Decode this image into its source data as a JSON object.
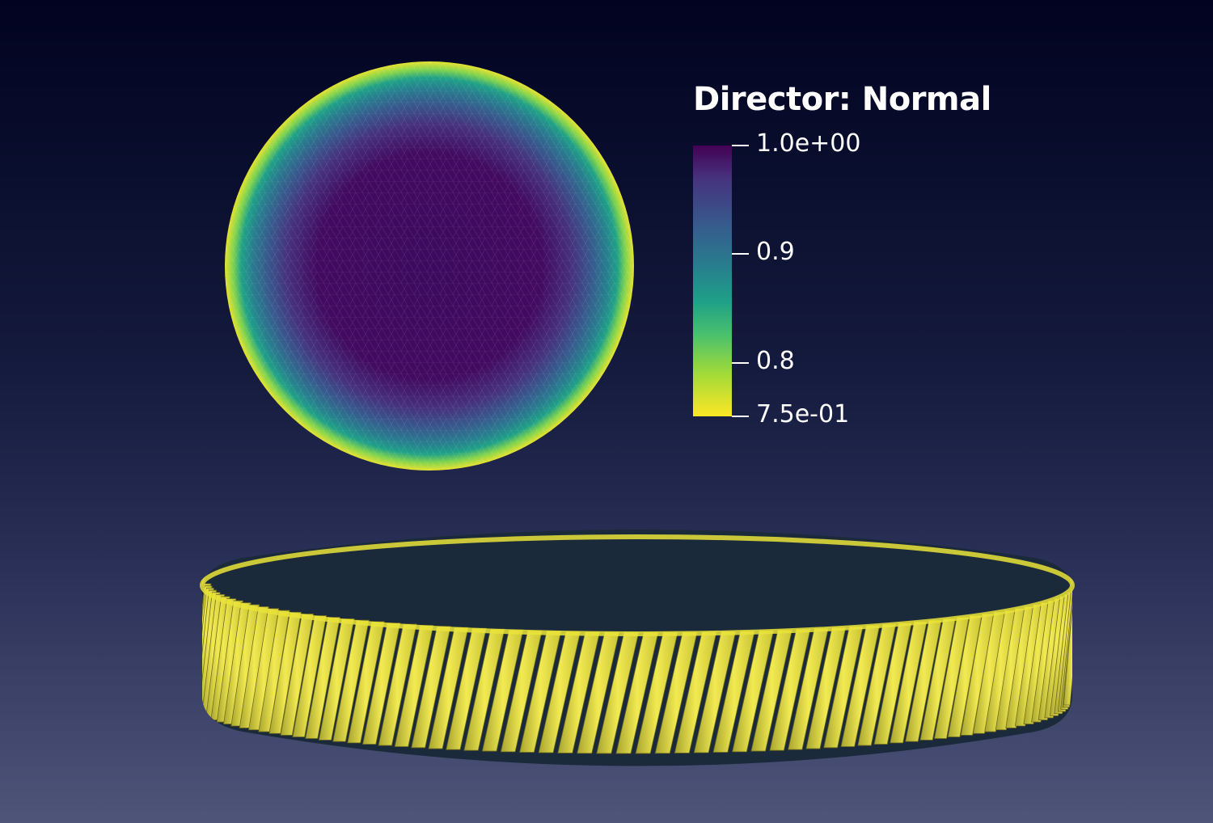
{
  "legend": {
    "title": "Director: Normal",
    "ticks": [
      {
        "label": "1.0e+00",
        "value": 1.0
      },
      {
        "label": "0.9",
        "value": 0.9
      },
      {
        "label": "0.8",
        "value": 0.8
      },
      {
        "label": "7.5e-01",
        "value": 0.75
      }
    ],
    "range": [
      0.75,
      1.0
    ],
    "colormap": "viridis (reversed)",
    "colors": [
      "#440154",
      "#46327e",
      "#365c8d",
      "#277f8e",
      "#1fa187",
      "#4ac16d",
      "#a0da39",
      "#fde725"
    ]
  },
  "scene": {
    "background_top": "#010320",
    "background_bottom": "#4f5579",
    "objects": [
      "top-view-disk-mesh",
      "side-view-director-cylinders"
    ]
  }
}
